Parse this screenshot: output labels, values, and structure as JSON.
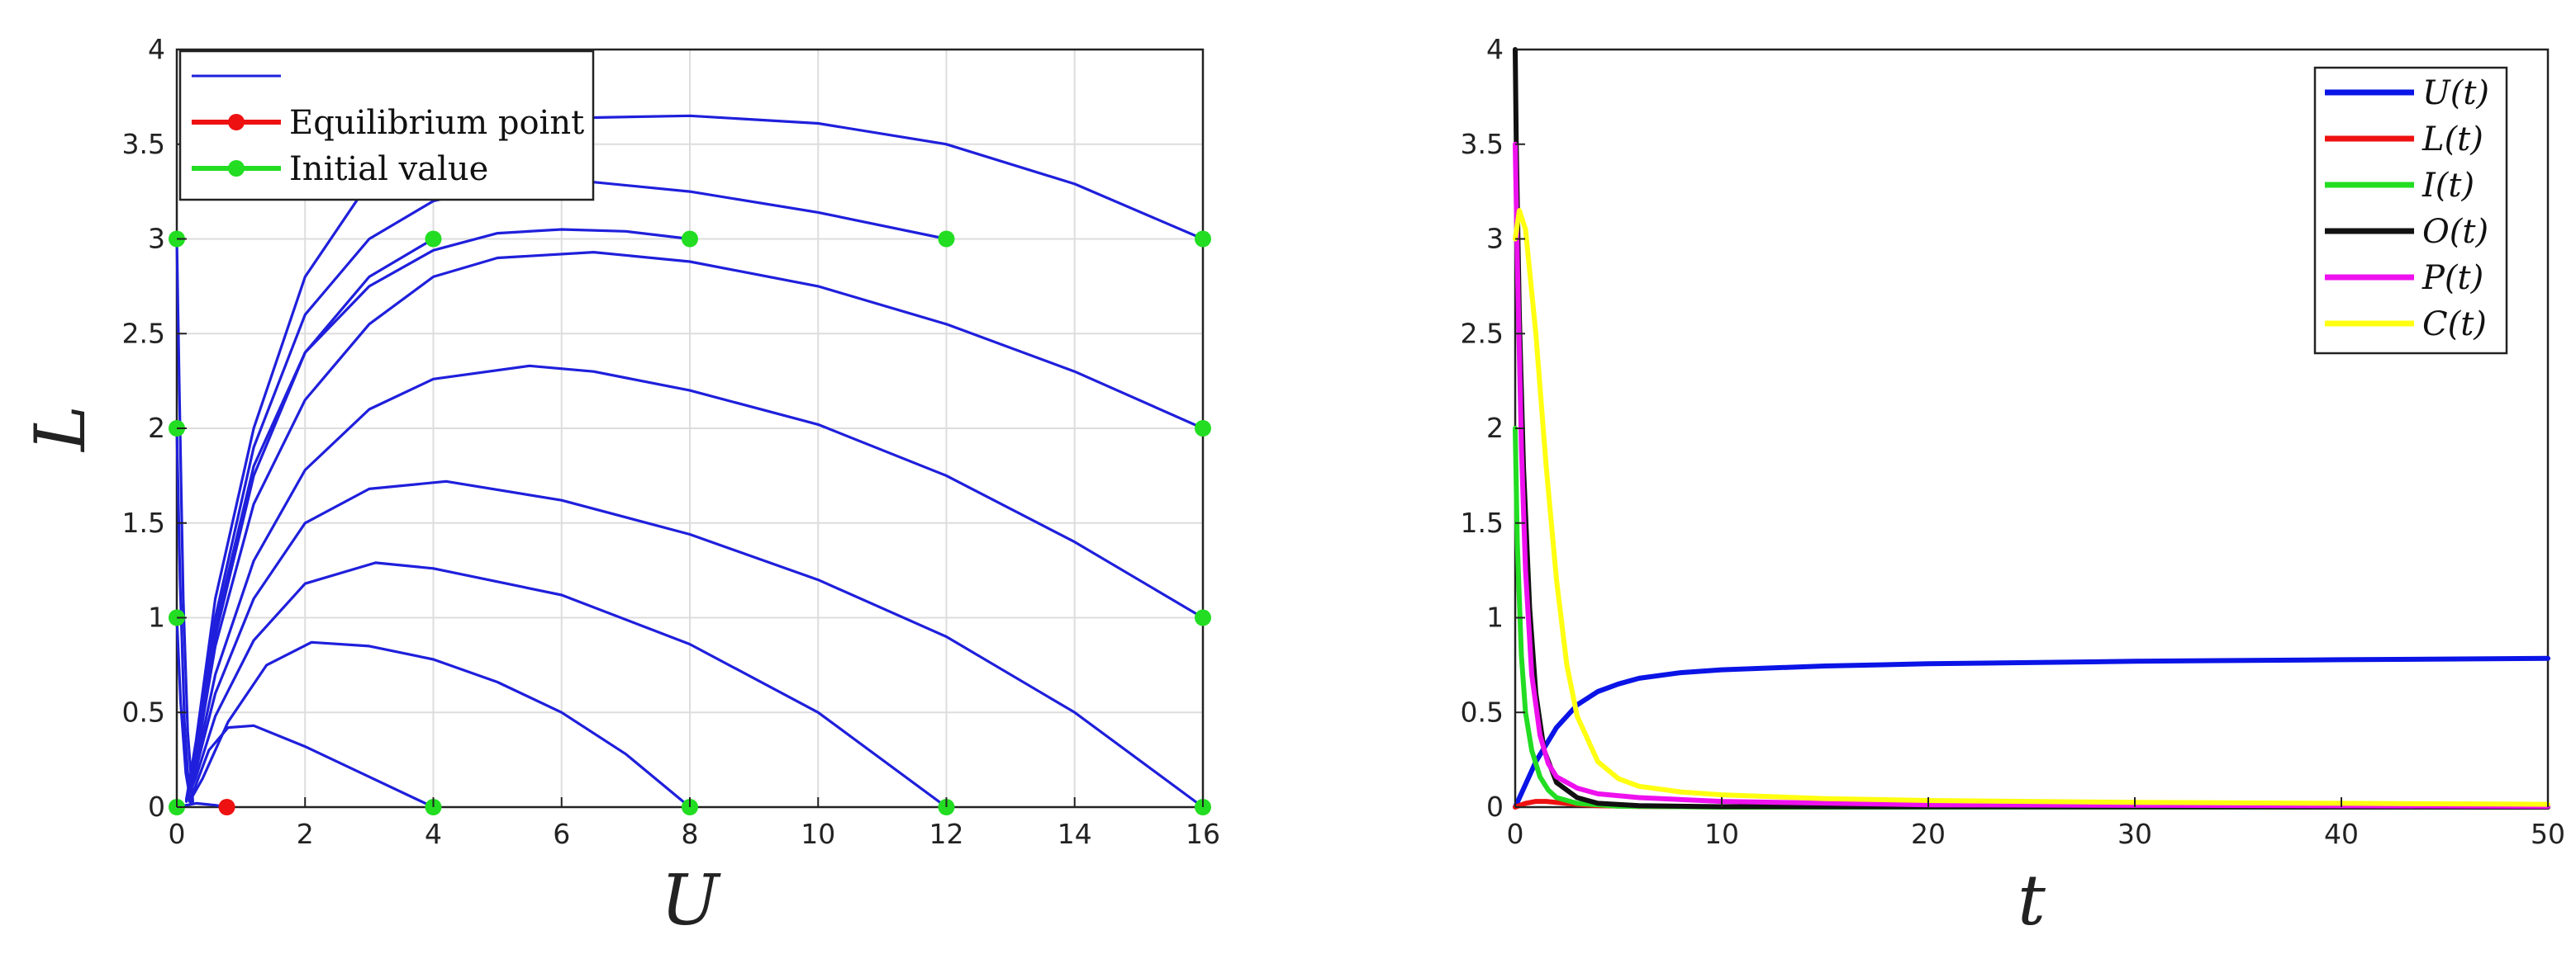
{
  "chart_data": [
    {
      "type": "line",
      "title": "",
      "xlabel": "U",
      "ylabel": "L",
      "xlim": [
        0,
        16
      ],
      "ylim": [
        0,
        4
      ],
      "xticks": [
        0,
        2,
        4,
        6,
        8,
        10,
        12,
        14,
        16
      ],
      "yticks": [
        0,
        0.5,
        1,
        1.5,
        2,
        2.5,
        3,
        3.5,
        4
      ],
      "xticklabels": [
        "0",
        "2",
        "4",
        "6",
        "8",
        "10",
        "12",
        "14",
        "16"
      ],
      "yticklabels": [
        "0",
        "0.5",
        "1",
        "1.5",
        "2",
        "2.5",
        "3",
        "3.5",
        "4"
      ],
      "grid": true,
      "legend_position": "top-left",
      "legend": [
        {
          "label": "",
          "color": "#1f1fdc",
          "marker": false
        },
        {
          "label": "Equilibrium point",
          "color": "#ee1111",
          "marker": true
        },
        {
          "label": "Initial value",
          "color": "#22dd22",
          "marker": true
        }
      ],
      "equilibrium_point": {
        "x": 0.78,
        "y": 0,
        "color": "#ee1111"
      },
      "initial_values": [
        [
          0,
          0
        ],
        [
          0,
          1
        ],
        [
          0,
          2
        ],
        [
          0,
          3
        ],
        [
          4,
          0
        ],
        [
          8,
          0
        ],
        [
          12,
          0
        ],
        [
          16,
          0
        ],
        [
          16,
          1
        ],
        [
          16,
          2
        ],
        [
          16,
          3
        ],
        [
          4,
          3
        ],
        [
          8,
          3
        ],
        [
          12,
          3
        ]
      ],
      "trajectory_color": "#1f1fdc",
      "series": [
        {
          "x": [
            16,
            14,
            12,
            10,
            8,
            6.4,
            5,
            4,
            3,
            2,
            1.2,
            0.6,
            0.3,
            0.15
          ],
          "y": [
            3,
            3.29,
            3.5,
            3.61,
            3.65,
            3.64,
            3.58,
            3.5,
            3.3,
            2.8,
            2,
            1.1,
            0.35,
            0.04
          ]
        },
        {
          "x": [
            12,
            10,
            8,
            6.5,
            5,
            4,
            3,
            2,
            1.2,
            0.6,
            0.3,
            0.15
          ],
          "y": [
            3,
            3.14,
            3.25,
            3.3,
            3.28,
            3.2,
            3.0,
            2.6,
            1.9,
            1.0,
            0.3,
            0.04
          ]
        },
        {
          "x": [
            8,
            7,
            6,
            5,
            4,
            3,
            2,
            1.2,
            0.6,
            0.3,
            0.15
          ],
          "y": [
            3,
            3.04,
            3.05,
            3.03,
            2.94,
            2.75,
            2.4,
            1.8,
            0.95,
            0.28,
            0.04
          ]
        },
        {
          "x": [
            4,
            3,
            2,
            1.2,
            0.6,
            0.3,
            0.15
          ],
          "y": [
            3,
            2.8,
            2.4,
            1.75,
            0.9,
            0.28,
            0.04
          ]
        },
        {
          "x": [
            16,
            14,
            12,
            10,
            8,
            6.5,
            5,
            4,
            3,
            2,
            1.2,
            0.6,
            0.3,
            0.15
          ],
          "y": [
            2,
            2.3,
            2.55,
            2.75,
            2.88,
            2.93,
            2.9,
            2.8,
            2.55,
            2.15,
            1.6,
            0.85,
            0.25,
            0.04
          ]
        },
        {
          "x": [
            16,
            14,
            12,
            10,
            8,
            6.5,
            5.5,
            4,
            3,
            2,
            1.2,
            0.6,
            0.3,
            0.15
          ],
          "y": [
            1,
            1.4,
            1.75,
            2.02,
            2.2,
            2.3,
            2.33,
            2.26,
            2.1,
            1.78,
            1.3,
            0.7,
            0.22,
            0.03
          ]
        },
        {
          "x": [
            16,
            14,
            12,
            10,
            8,
            6,
            4.2,
            3,
            2,
            1.2,
            0.6,
            0.3,
            0.15
          ],
          "y": [
            0,
            0.5,
            0.9,
            1.2,
            1.44,
            1.62,
            1.72,
            1.68,
            1.5,
            1.1,
            0.6,
            0.2,
            0.03
          ]
        },
        {
          "x": [
            12,
            10,
            8,
            6,
            4,
            3.1,
            2,
            1.2,
            0.6,
            0.3,
            0.15
          ],
          "y": [
            0,
            0.5,
            0.86,
            1.12,
            1.26,
            1.29,
            1.18,
            0.88,
            0.48,
            0.16,
            0.03
          ]
        },
        {
          "x": [
            8,
            7,
            6,
            5,
            4,
            3,
            2.1,
            1.4,
            0.8,
            0.4,
            0.2
          ],
          "y": [
            0,
            0.28,
            0.5,
            0.66,
            0.78,
            0.85,
            0.87,
            0.75,
            0.45,
            0.15,
            0.03
          ]
        },
        {
          "x": [
            4,
            3,
            2,
            1.2,
            0.8,
            0.5,
            0.3,
            0.2
          ],
          "y": [
            0,
            0.16,
            0.32,
            0.43,
            0.42,
            0.3,
            0.12,
            0.03
          ]
        },
        {
          "x": [
            0,
            0.04,
            0.1,
            0.17,
            0.25
          ],
          "y": [
            3,
            2.2,
            1.1,
            0.4,
            0.03
          ]
        },
        {
          "x": [
            0,
            0.05,
            0.12,
            0.2
          ],
          "y": [
            2,
            1.2,
            0.45,
            0.03
          ]
        },
        {
          "x": [
            0,
            0.06,
            0.14,
            0.22
          ],
          "y": [
            1,
            0.55,
            0.18,
            0.02
          ]
        },
        {
          "x": [
            0,
            0.3,
            0.6,
            0.78
          ],
          "y": [
            0,
            0.02,
            0.01,
            0
          ]
        }
      ]
    },
    {
      "type": "line",
      "title": "",
      "xlabel": "t",
      "ylabel": "",
      "xlim": [
        0,
        50
      ],
      "ylim": [
        0,
        4
      ],
      "xticks": [
        0,
        10,
        20,
        30,
        40,
        50
      ],
      "yticks": [
        0,
        0.5,
        1,
        1.5,
        2,
        2.5,
        3,
        3.5,
        4
      ],
      "xticklabels": [
        "0",
        "10",
        "20",
        "30",
        "40",
        "50"
      ],
      "yticklabels": [
        "0",
        "0.5",
        "1",
        "1.5",
        "2",
        "2.5",
        "3",
        "3.5",
        "4"
      ],
      "grid": false,
      "legend_position": "top-right",
      "series": [
        {
          "name": "U(t)",
          "color": "#0a14e6",
          "x": [
            0,
            0.5,
            1,
            2,
            3,
            4,
            5,
            6,
            8,
            10,
            15,
            20,
            30,
            40,
            50
          ],
          "y": [
            0,
            0.12,
            0.24,
            0.42,
            0.54,
            0.61,
            0.65,
            0.68,
            0.71,
            0.725,
            0.745,
            0.757,
            0.77,
            0.778,
            0.785
          ]
        },
        {
          "name": "L(t)",
          "color": "#ee1111",
          "x": [
            0,
            0.5,
            1,
            1.5,
            2,
            3,
            4,
            6,
            10,
            20,
            50
          ],
          "y": [
            0,
            0.02,
            0.03,
            0.03,
            0.025,
            0.015,
            0.008,
            0.003,
            0.001,
            0.0,
            0.0
          ]
        },
        {
          "name": "I(t)",
          "color": "#22dd22",
          "x": [
            0,
            0.1,
            0.3,
            0.5,
            0.8,
            1.2,
            1.6,
            2,
            3,
            5,
            10,
            50
          ],
          "y": [
            2.0,
            1.4,
            0.8,
            0.5,
            0.3,
            0.16,
            0.09,
            0.05,
            0.02,
            0.005,
            0.0,
            0.0
          ]
        },
        {
          "name": "O(t)",
          "color": "#111111",
          "x": [
            0,
            0.05,
            0.2,
            0.4,
            0.7,
            1.0,
            1.4,
            2,
            3,
            4,
            6,
            10,
            50
          ],
          "y": [
            4.0,
            3.5,
            2.6,
            1.8,
            1.05,
            0.6,
            0.3,
            0.13,
            0.05,
            0.02,
            0.008,
            0.002,
            0.0
          ]
        },
        {
          "name": "P(t)",
          "color": "#ee11ee",
          "x": [
            0,
            0.1,
            0.3,
            0.5,
            0.8,
            1.2,
            1.6,
            2,
            3,
            4,
            6,
            10,
            20,
            50
          ],
          "y": [
            3.5,
            2.9,
            1.9,
            1.25,
            0.7,
            0.38,
            0.23,
            0.16,
            0.1,
            0.07,
            0.05,
            0.03,
            0.012,
            0.004
          ]
        },
        {
          "name": "C(t)",
          "color": "#ffff11",
          "x": [
            0,
            0.2,
            0.5,
            1,
            1.5,
            2,
            2.5,
            3,
            4,
            5,
            6,
            8,
            10,
            15,
            20,
            30,
            40,
            50
          ],
          "y": [
            3.0,
            3.15,
            3.05,
            2.5,
            1.8,
            1.2,
            0.75,
            0.48,
            0.24,
            0.15,
            0.11,
            0.08,
            0.065,
            0.045,
            0.035,
            0.025,
            0.02,
            0.015
          ]
        }
      ]
    }
  ]
}
